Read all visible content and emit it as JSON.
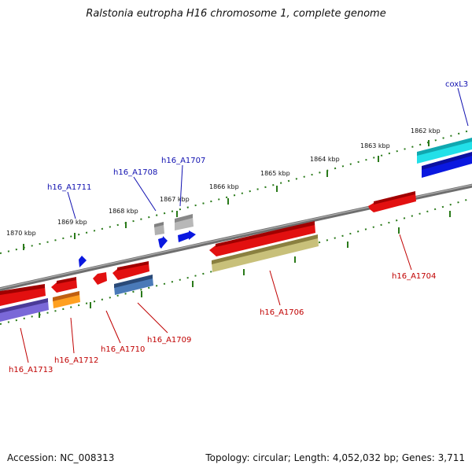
{
  "title": "Ralstonia eutropha H16 chromosome 1, complete genome",
  "accession": "Accession: NC_008313",
  "topology": "Topology: circular; Length: 4,052,032 bp; Genes: 3,711",
  "colors": {
    "backbone": "#7a7a7a",
    "tick": "#2a7a1a",
    "label_forward": "#1010b0",
    "label_reverse": "#c00000"
  },
  "kbp_labels": [
    "1870 kbp",
    "1869 kbp",
    "1868 kbp",
    "1867 kbp",
    "1866 kbp",
    "1865 kbp",
    "1864 kbp",
    "1863 kbp",
    "1862 kbp"
  ],
  "gene_labels": {
    "coxL3": "coxL3",
    "h16_A1707": "h16_A1707",
    "h16_A1708": "h16_A1708",
    "h16_A1711": "h16_A1711",
    "h16_A1704": "h16_A1704",
    "h16_A1706": "h16_A1706",
    "h16_A1709": "h16_A1709",
    "h16_A1710": "h16_A1710",
    "h16_A1712": "h16_A1712",
    "h16_A1713": "h16_A1713"
  }
}
